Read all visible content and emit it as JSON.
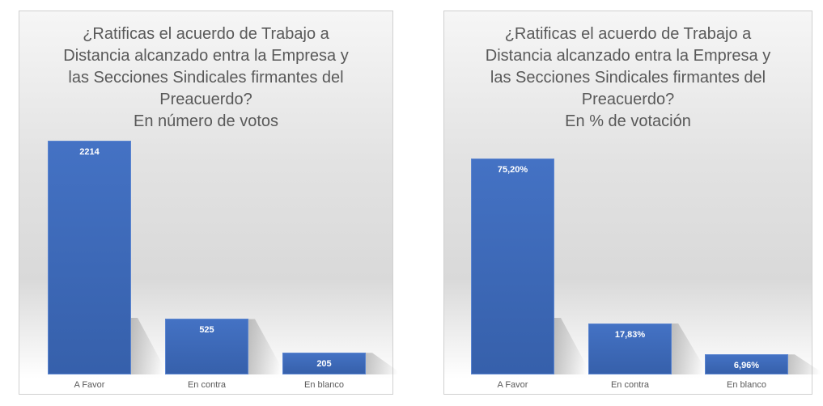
{
  "chart_data": [
    {
      "type": "bar",
      "title_lines": [
        "¿Ratificas el acuerdo de Trabajo a",
        "Distancia alcanzado entra la Empresa y",
        "las Secciones Sindicales firmantes del",
        "Preacuerdo?",
        "En número de votos"
      ],
      "categories": [
        "A Favor",
        "En contra",
        "En blanco"
      ],
      "values": [
        2214,
        525,
        205
      ],
      "labels": [
        "2214",
        "525",
        "205"
      ],
      "ylim": [
        0,
        2214
      ],
      "grid": false,
      "color": "#4472c4"
    },
    {
      "type": "bar",
      "title_lines": [
        "¿Ratificas el acuerdo de Trabajo a",
        "Distancia alcanzado entra la Empresa y",
        "las Secciones Sindicales firmantes del",
        "Preacuerdo?",
        "En % de votación"
      ],
      "categories": [
        "A Favor",
        "En contra",
        "En blanco"
      ],
      "values": [
        75.2,
        17.83,
        6.96
      ],
      "labels": [
        "75,20%",
        "17,83%",
        "6,96%"
      ],
      "ylim": [
        0,
        75.2
      ],
      "grid": false,
      "color": "#4472c4"
    }
  ]
}
